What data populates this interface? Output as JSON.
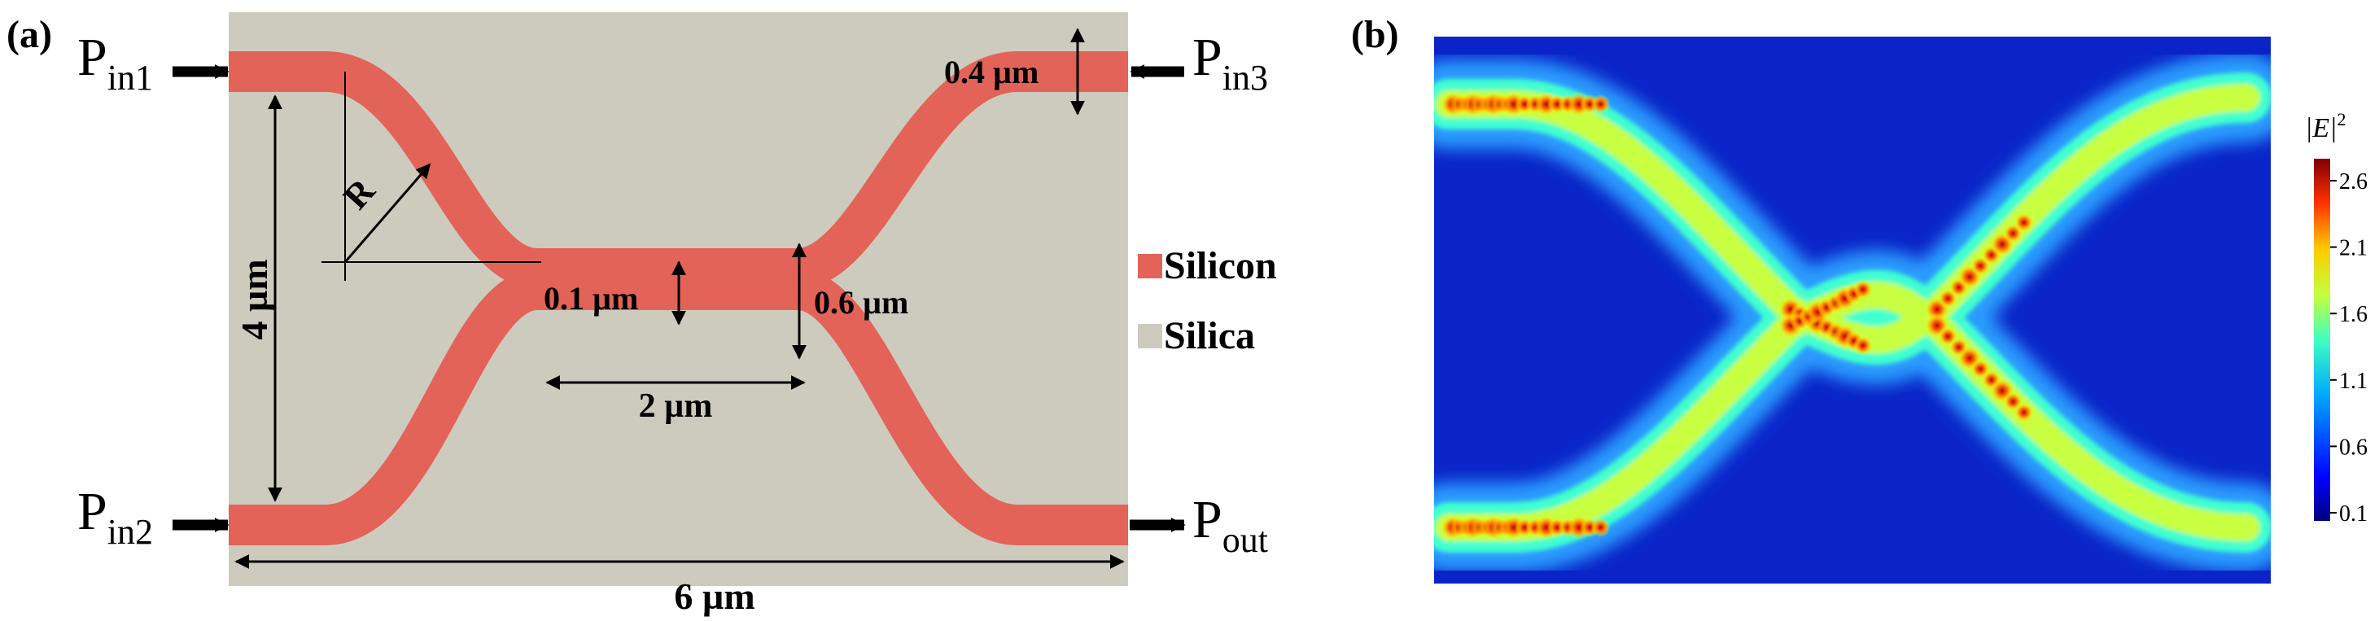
{
  "panel_a": {
    "label": "(a)",
    "ports": {
      "pin1": {
        "main": "P",
        "sub": "in1"
      },
      "pin2": {
        "main": "P",
        "sub": "in2"
      },
      "pin3": {
        "main": "P",
        "sub": "in3"
      },
      "pout": {
        "main": "P",
        "sub": "out"
      }
    },
    "dimensions": {
      "width_total": "6 µm",
      "height_total": "4 µm",
      "radius": "R",
      "gap": "0.1 µm",
      "coupler_width": "0.6 µm",
      "waveguide_width": "0.4 µm",
      "coupler_length": "2 µm"
    },
    "legend": [
      {
        "label": "Silicon",
        "color": "#e36358"
      },
      {
        "label": "Silica",
        "color": "#cdcbbd"
      }
    ],
    "colors": {
      "silicon": "#e36358",
      "silica": "#cdcbbd",
      "taper": "#eea398"
    }
  },
  "panel_b": {
    "label": "(b)",
    "colorbar": {
      "title_text": "|E|",
      "title_exponent": "2",
      "ticks": [
        "2.6",
        "2.1",
        "1.6",
        "1.1",
        "0.6",
        "0.1"
      ]
    },
    "colors": {
      "background": "#0a24c8"
    }
  }
}
